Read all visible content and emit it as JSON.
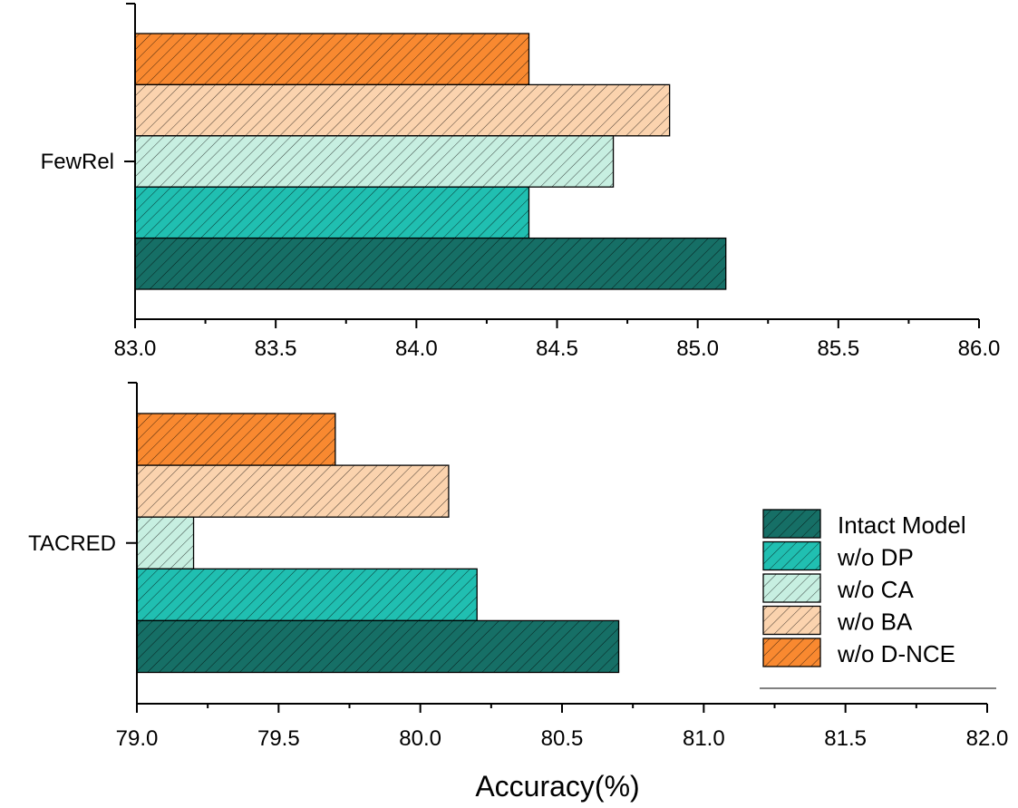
{
  "chart_data": {
    "type": "bar",
    "orientation": "horizontal",
    "xlabel": "Accuracy(%)",
    "legend": {
      "position": "bottom-right",
      "entries": [
        "Intact Model",
        "w/o DP",
        "w/o CA",
        "w/o BA",
        "w/o D-NCE"
      ]
    },
    "colors": {
      "Intact Model": "#166f66",
      "w/o DP": "#20bfb1",
      "w/o CA": "#c7efe1",
      "w/o BA": "#fbd3ae",
      "w/o D-NCE": "#f98930"
    },
    "panels": [
      {
        "category": "FewRel",
        "xlim": [
          83.0,
          86.0
        ],
        "ticks": [
          "83.0",
          "83.5",
          "84.0",
          "84.5",
          "85.0",
          "85.5",
          "86.0"
        ],
        "series": [
          {
            "name": "Intact Model",
            "value": 85.1
          },
          {
            "name": "w/o DP",
            "value": 84.4
          },
          {
            "name": "w/o CA",
            "value": 84.7
          },
          {
            "name": "w/o BA",
            "value": 84.9
          },
          {
            "name": "w/o D-NCE",
            "value": 84.4
          }
        ]
      },
      {
        "category": "TACRED",
        "xlim": [
          79.0,
          82.0
        ],
        "ticks": [
          "79.0",
          "79.5",
          "80.0",
          "80.5",
          "81.0",
          "81.5",
          "82.0"
        ],
        "series": [
          {
            "name": "Intact Model",
            "value": 80.7
          },
          {
            "name": "w/o DP",
            "value": 80.2
          },
          {
            "name": "w/o CA",
            "value": 79.2
          },
          {
            "name": "w/o BA",
            "value": 80.1
          },
          {
            "name": "w/o D-NCE",
            "value": 79.7
          }
        ]
      }
    ]
  }
}
